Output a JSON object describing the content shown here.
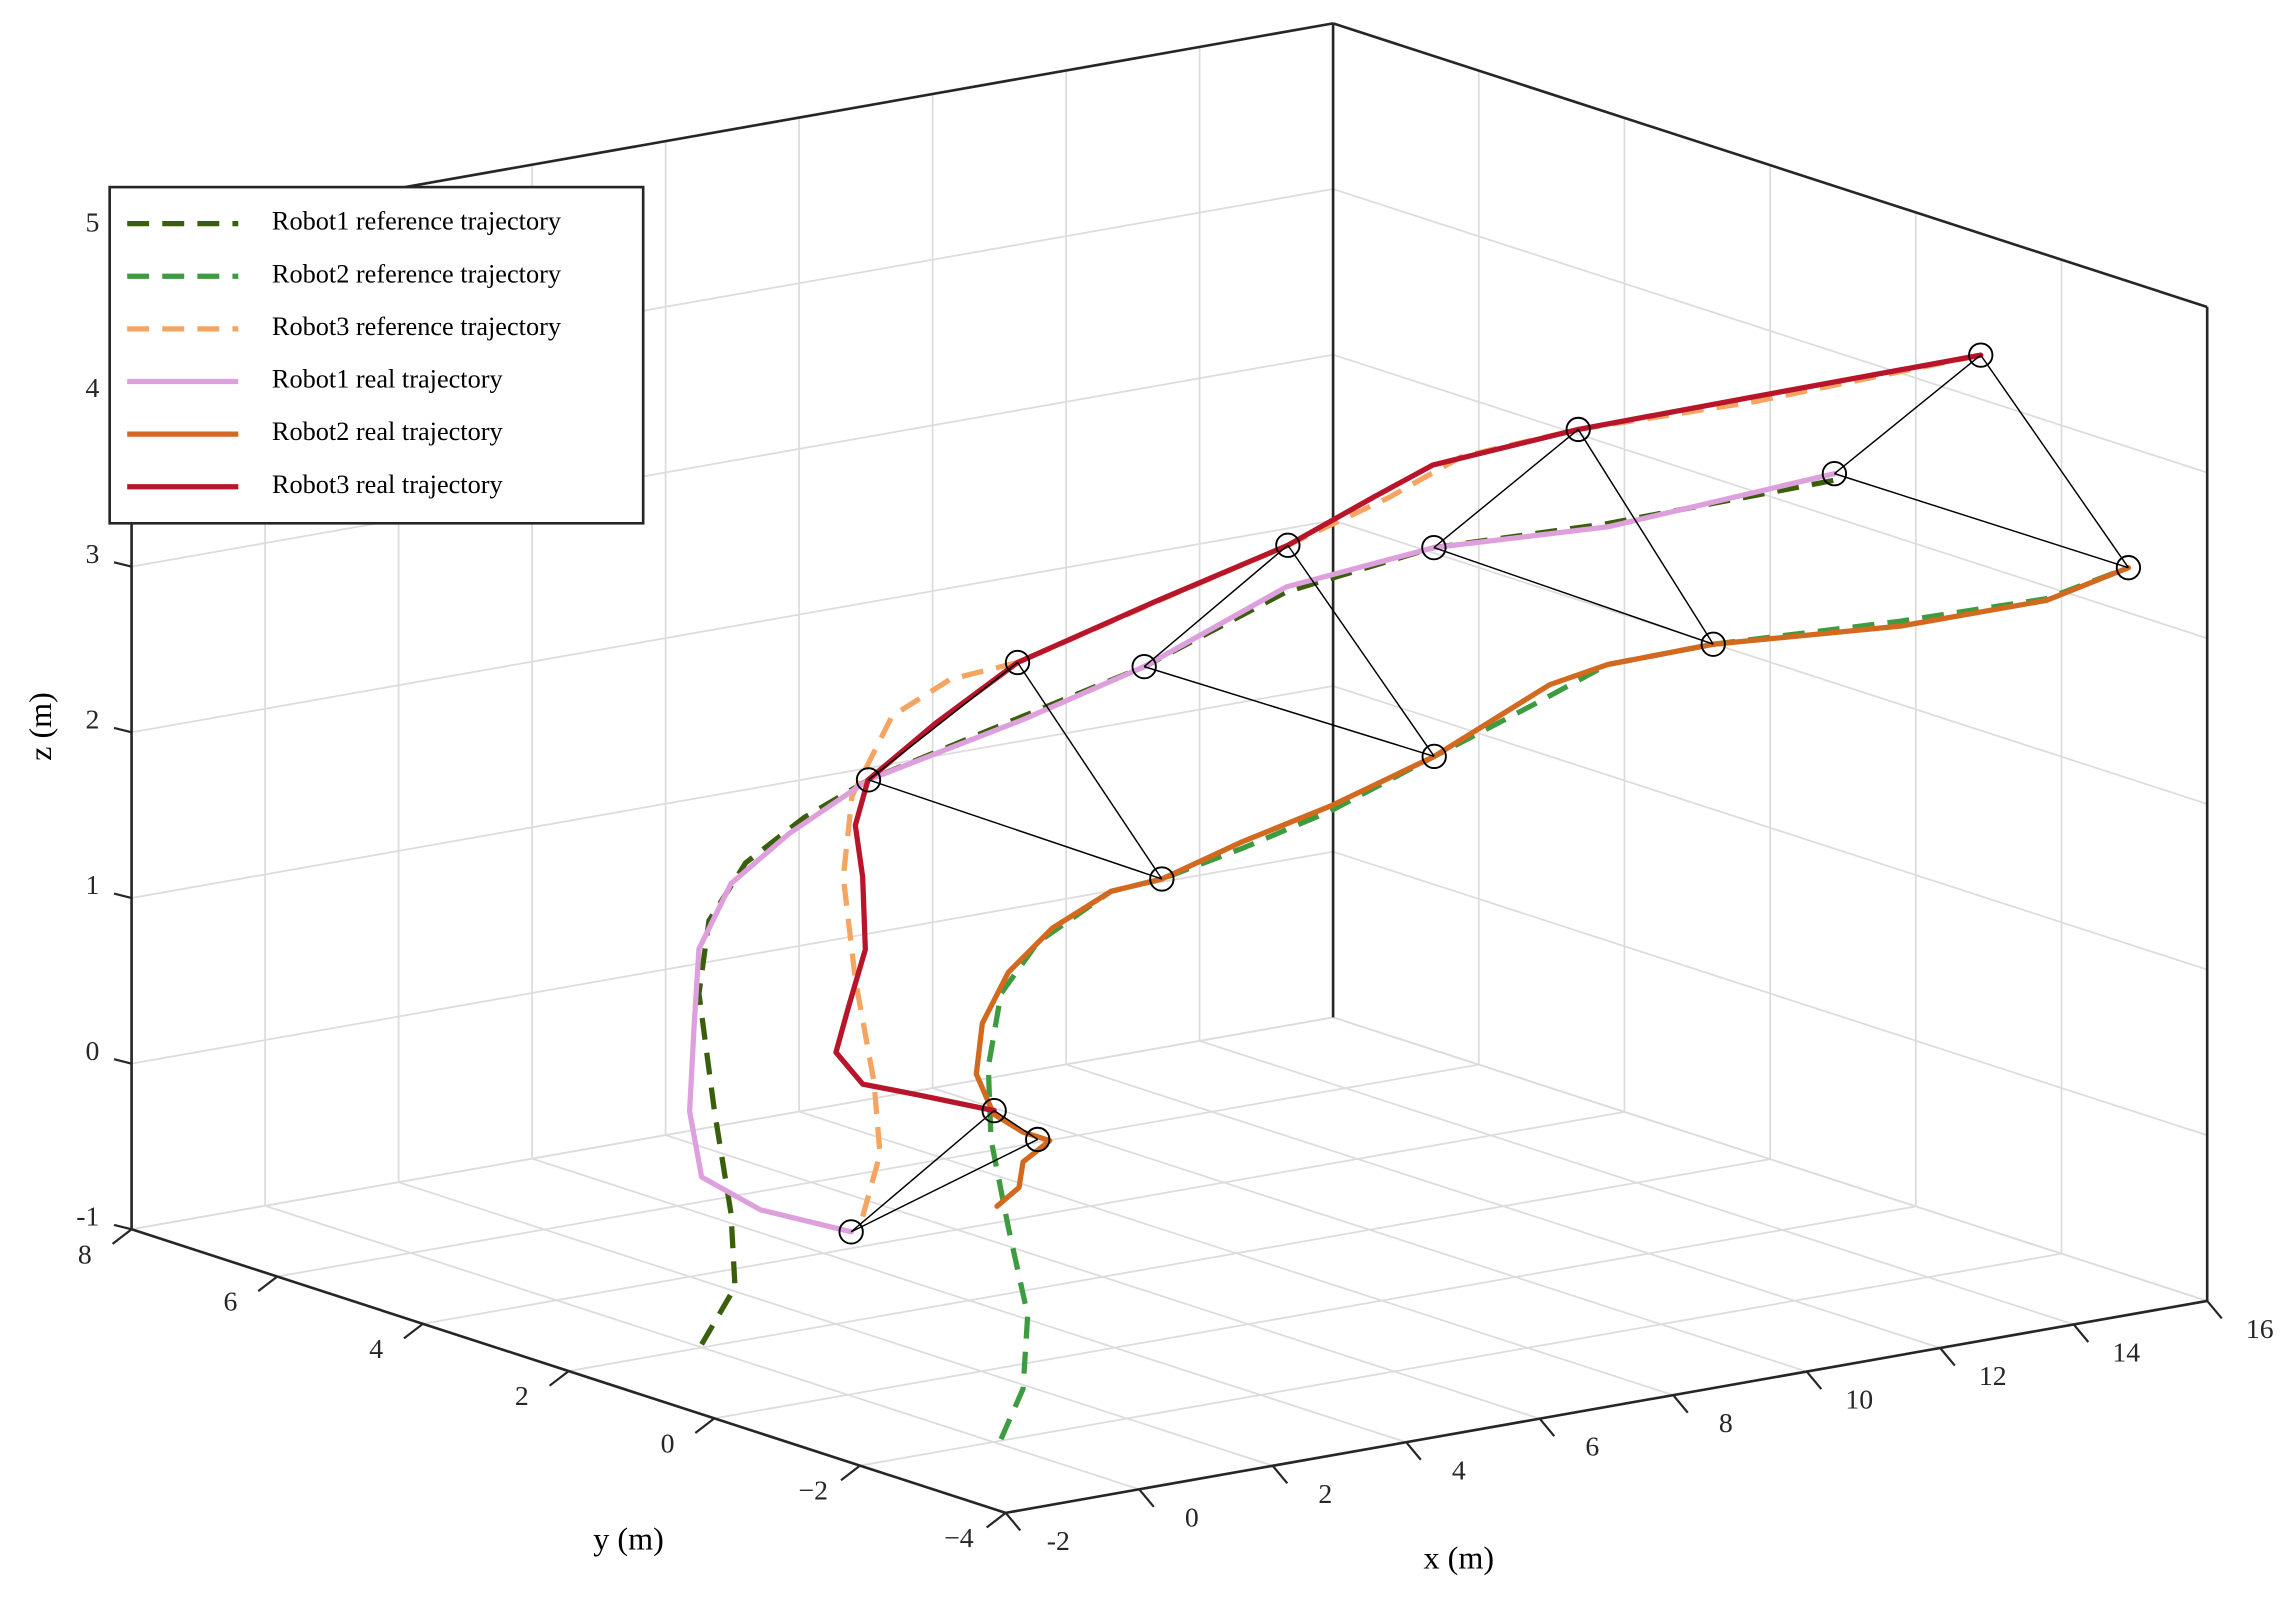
{
  "chart_data": {
    "type": "line3d",
    "xlabel": "x (m)",
    "ylabel": "y (m)",
    "zlabel": "z (m)",
    "xlim": [
      -2,
      16
    ],
    "ylim": [
      -4,
      8
    ],
    "zlim": [
      -1,
      5
    ],
    "xticks": [
      -2,
      0,
      2,
      4,
      6,
      8,
      10,
      12,
      14,
      16
    ],
    "yticks": [
      {
        "value": -4,
        "label": "−4"
      },
      {
        "value": -2,
        "label": "−2"
      },
      0,
      2,
      4,
      6,
      8
    ],
    "zticks": [
      -1,
      0,
      1,
      2,
      3,
      4,
      5
    ],
    "grid": true,
    "legend": "northwest",
    "series": [
      {
        "name": "Robot1 reference trajectory",
        "color": "#3a5f0b",
        "dashed": true,
        "x": [
          -2.19,
          -1.69,
          -1.75,
          -2.0,
          -2.23,
          -2.08,
          -1.53,
          -0.66,
          0.31,
          2.63,
          4.44,
          6.57,
          8.78,
          11.39,
          14.78
        ],
        "y": [
          0,
          0,
          0,
          0,
          0,
          0,
          0,
          0,
          0,
          0,
          0,
          0,
          0,
          0,
          0
        ],
        "z": [
          -0.54,
          -0.23,
          0.22,
          0.86,
          1.58,
          2.01,
          2.32,
          2.53,
          2.69,
          2.91,
          3.08,
          3.38,
          3.49,
          3.45,
          3.47
        ]
      },
      {
        "name": "Robot2 reference trajectory",
        "color": "#3d9b40",
        "dashed": true,
        "x": [
          -2.07,
          -1.74,
          -1.67,
          -1.96,
          -2.22,
          -2.26,
          -2.07,
          -1.52,
          -0.42,
          0.34,
          1.55,
          2.86,
          4.42,
          5.93,
          7.02,
          8.6,
          11.4,
          13.59,
          14.82
        ],
        "y": [
          -4,
          -4,
          -4,
          -4,
          -4,
          -4,
          -4,
          -4,
          -4,
          -4,
          -4,
          -4,
          -4,
          -4,
          -4,
          -4,
          -4,
          -4,
          -4
        ],
        "z": [
          -0.55,
          -0.27,
          0.17,
          0.72,
          1.27,
          1.71,
          2.14,
          2.41,
          2.64,
          2.66,
          2.76,
          2.89,
          3.11,
          3.32,
          3.48,
          3.49,
          3.43,
          3.41,
          3.51
        ]
      },
      {
        "name": "Robot3 reference trajectory",
        "color": "#f5a561",
        "dashed": true,
        "x": [
          -1.96,
          -1.7,
          -1.79,
          -2.07,
          -2.25,
          -2.12,
          -1.52,
          -0.65,
          0.36,
          2.64,
          4.41,
          5.92,
          7.01,
          8.76,
          11.39,
          14.79
        ],
        "y": [
          -2,
          -2,
          -2,
          -2,
          -2,
          -2,
          -2,
          -2,
          -2,
          -2,
          -2,
          -2,
          -2,
          -2,
          -2,
          -2
        ],
        "z": [
          0.5,
          0.86,
          1.3,
          1.94,
          2.57,
          3.05,
          3.49,
          3.65,
          3.68,
          3.92,
          4.1,
          4.28,
          4.45,
          4.49,
          4.47,
          4.51
        ]
      },
      {
        "name": "Robot1 real trajectory",
        "color": "#dda0dd",
        "dashed": false,
        "x": [
          0.05,
          -1.31,
          -2.19,
          -2.37,
          -2.3,
          -2.23,
          -1.75,
          -0.88,
          0.31,
          2.63,
          4.44,
          6.57,
          8.78,
          11.39,
          14.78
        ],
        "y": [
          0,
          0,
          0,
          0,
          0,
          0,
          0,
          0,
          0,
          0,
          0,
          0,
          0,
          0,
          0
        ],
        "z": [
          -0.02,
          0.21,
          0.47,
          0.88,
          1.41,
          1.85,
          2.21,
          2.45,
          2.69,
          2.89,
          3.08,
          3.41,
          3.49,
          3.43,
          3.51
        ]
      },
      {
        "name": "Robot2 real trajectory",
        "color": "#d2691e",
        "dashed": false,
        "x": [
          -2.13,
          -1.8,
          -1.74,
          -1.34,
          -1.74,
          -2.18,
          -2.44,
          -2.35,
          -1.96,
          -1.3,
          -0.42,
          0.34,
          1.55,
          2.86,
          4.42,
          6.15,
          7.02,
          8.6,
          11.4,
          13.59,
          14.82
        ],
        "y": [
          -4,
          -4,
          -4,
          -4,
          -4,
          -4,
          -4,
          -4,
          -4,
          -4,
          -4,
          -4,
          -4,
          -4,
          -4,
          -4,
          -4,
          -4,
          -4,
          -4,
          -4
        ],
        "z": [
          0.86,
          0.95,
          1.1,
          1.2,
          1.28,
          1.42,
          1.68,
          1.98,
          2.26,
          2.48,
          2.64,
          2.66,
          2.8,
          2.92,
          3.11,
          3.42,
          3.48,
          3.49,
          3.4,
          3.4,
          3.51
        ]
      },
      {
        "name": "Robot3 real trajectory",
        "color": "#b8142a",
        "dashed": false,
        "x": [
          0.01,
          -1.09,
          -1.96,
          -2.36,
          -2.18,
          -1.92,
          -1.96,
          -2.07,
          -1.88,
          -0.87,
          0.36,
          2.41,
          4.41,
          5.7,
          6.58,
          8.76,
          11.39,
          14.79
        ],
        "y": [
          -2,
          -2,
          -2,
          -2,
          -2,
          -2,
          -2,
          -2,
          -2,
          -2,
          -2,
          -2,
          -2,
          -2,
          -2,
          -2,
          -2,
          -2
        ],
        "z": [
          1.0,
          1.17,
          1.3,
          1.52,
          1.77,
          2.11,
          2.55,
          2.87,
          3.13,
          3.4,
          3.68,
          3.9,
          4.1,
          4.3,
          4.43,
          4.49,
          4.5,
          4.51
        ]
      }
    ],
    "formation": [
      {
        "x": [
          0.05,
          -1.52,
          0.01
        ],
        "y": [
          0,
          -4,
          -2
        ],
        "z": [
          -0.02,
          1.22,
          1.0
        ]
      },
      {
        "x": [
          0.31,
          0.34,
          0.36
        ],
        "y": [
          0,
          -4,
          -2
        ],
        "z": [
          2.69,
          2.66,
          3.68
        ]
      },
      {
        "x": [
          4.44,
          4.42,
          4.41
        ],
        "y": [
          0,
          -4,
          -2
        ],
        "z": [
          3.08,
          3.11,
          4.1
        ]
      },
      {
        "x": [
          8.78,
          8.6,
          8.76
        ],
        "y": [
          0,
          -4,
          -2
        ],
        "z": [
          3.49,
          3.49,
          4.49
        ]
      },
      {
        "x": [
          14.78,
          14.82,
          14.79
        ],
        "y": [
          0,
          -4,
          -2
        ],
        "z": [
          3.51,
          3.51,
          4.51
        ]
      }
    ]
  }
}
